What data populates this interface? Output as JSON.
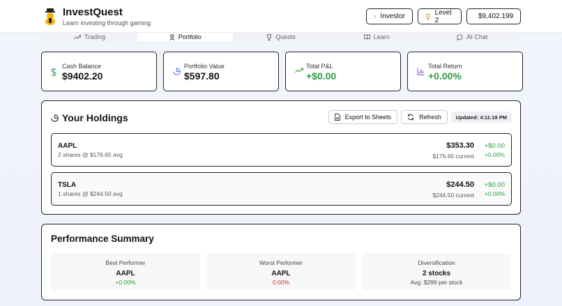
{
  "header": {
    "title": "InvestQuest",
    "subtitle": "Learn investing through gaming",
    "investor_label": "Investor",
    "level_label": "Level 2",
    "balance_label": "$9,402.199"
  },
  "tabs": [
    {
      "label": "Trading",
      "icon": "trending-up-icon"
    },
    {
      "label": "Portfolio",
      "icon": "user-icon"
    },
    {
      "label": "Quests",
      "icon": "trophy-icon"
    },
    {
      "label": "Learn",
      "icon": "book-icon"
    },
    {
      "label": "AI Chat",
      "icon": "chat-icon"
    }
  ],
  "active_tab": "Portfolio",
  "stats": [
    {
      "label": "Cash Balance",
      "value": "$9402.20",
      "icon": "dollar-icon",
      "color": "#2f9a43"
    },
    {
      "label": "Portfolio Value",
      "value": "$597.80",
      "icon": "pie-chart-icon",
      "color": "#3b6fd8"
    },
    {
      "label": "Total P&L",
      "value": "+$0.00",
      "icon": "trending-up-icon",
      "color": "#2f9a43"
    },
    {
      "label": "Total Return",
      "value": "+0.00%",
      "icon": "bar-chart-icon",
      "color": "#8a4fd8"
    }
  ],
  "holdings": {
    "title": "Your Holdings",
    "export_label": "Export to Sheets",
    "refresh_label": "Refresh",
    "updated_label": "Updated: 4:11:18 PM",
    "rows": [
      {
        "symbol": "AAPL",
        "desc": "2 shares @ $176.65 avg",
        "value": "$353.30",
        "current": "$176.65 current",
        "pl": "+$0.00",
        "pct": "+0.00%"
      },
      {
        "symbol": "TSLA",
        "desc": "1 shares @ $244.50 avg",
        "value": "$244.50",
        "current": "$244.50 current",
        "pl": "+$0.00",
        "pct": "+0.00%"
      }
    ]
  },
  "performance": {
    "title": "Performance Summary",
    "cards": [
      {
        "label": "Best Performer",
        "main": "AAPL",
        "sub": "+0.00%"
      },
      {
        "label": "Worst Performer",
        "main": "AAPL",
        "sub": "0.00%"
      },
      {
        "label": "Diversification",
        "main": "2 stocks",
        "sub": "Avg: $299 per stock"
      }
    ]
  },
  "colors": {
    "positive": "#2f9a43",
    "negative": "#d0312d",
    "accent_blue": "#3b6fd8",
    "accent_purple": "#8a4fd8",
    "trophy": "#c98a16"
  }
}
